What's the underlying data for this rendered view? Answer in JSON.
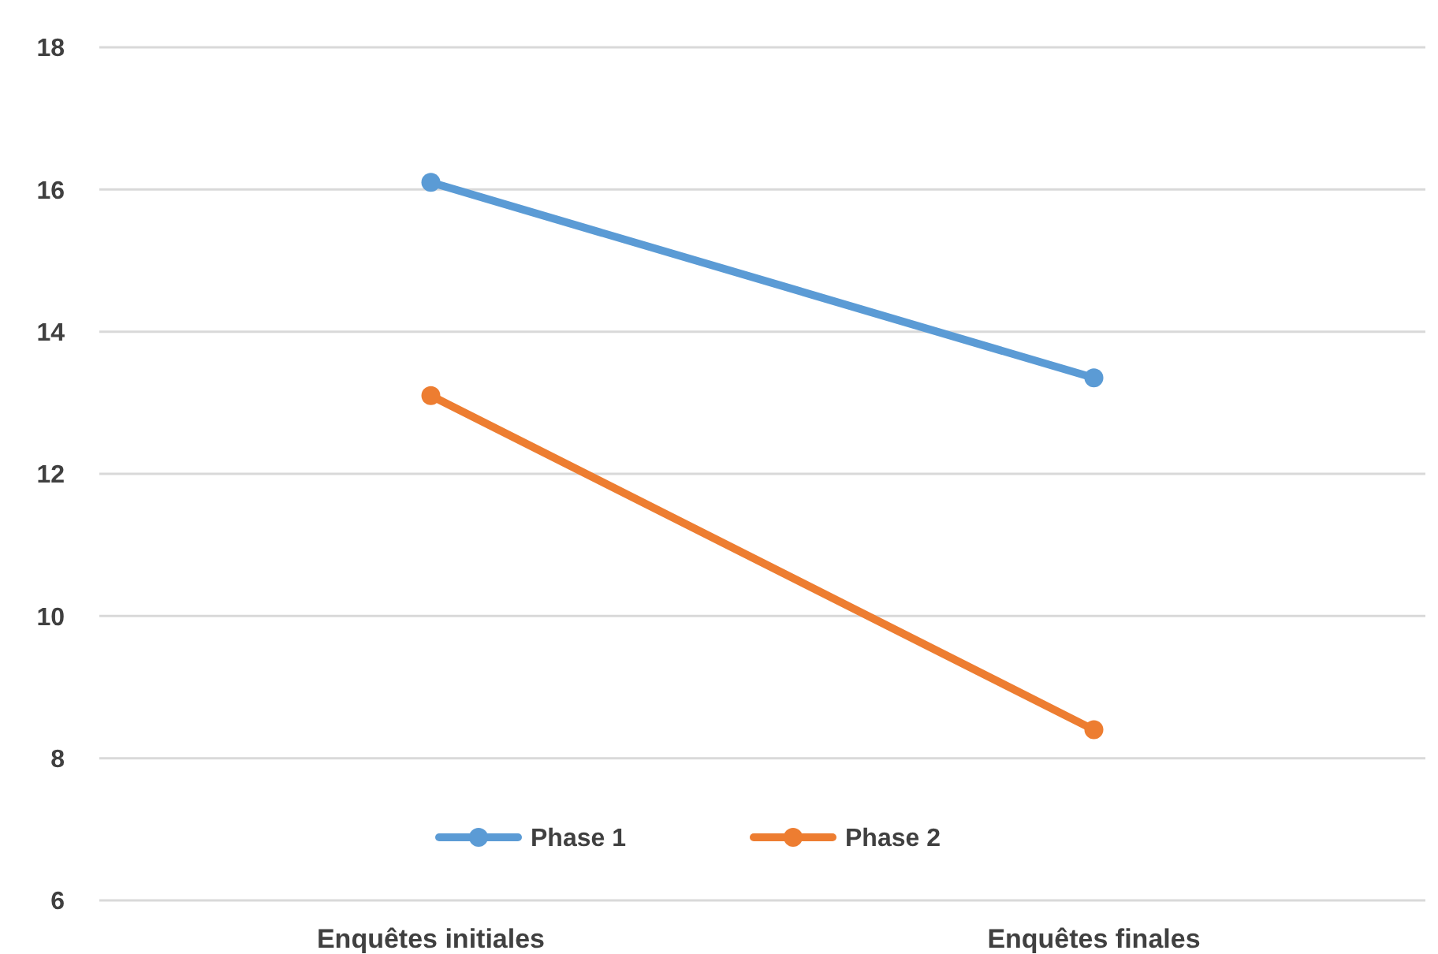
{
  "chart_data": {
    "type": "line",
    "categories": [
      "Enquêtes initiales",
      "Enquêtes finales"
    ],
    "series": [
      {
        "name": "Phase 1",
        "color": "#5b9bd5",
        "values": [
          16.1,
          13.35
        ]
      },
      {
        "name": "Phase 2",
        "color": "#ed7d31",
        "values": [
          13.1,
          8.4
        ]
      }
    ],
    "ylim": [
      6,
      18
    ],
    "yticks": [
      6,
      8,
      10,
      12,
      14,
      16,
      18
    ],
    "grid": "y",
    "legend": "bottom",
    "marker": "circle",
    "line_style": "solid"
  }
}
